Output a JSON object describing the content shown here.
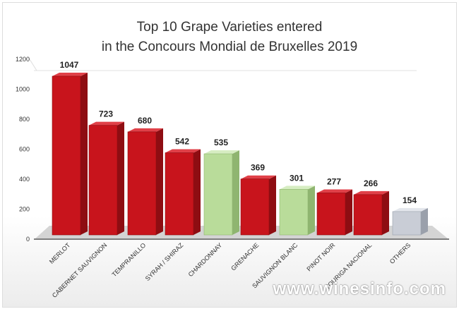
{
  "chart_data": {
    "type": "bar",
    "title_line1": "Top 10 Grape Varieties entered",
    "title_line2": "in the Concours Mondial de Bruxelles 2019",
    "categories": [
      "MERLOT",
      "CABERNET SAUVIGNON",
      "TEMPRANILLO",
      "SYRAH / SHIRAZ",
      "CHARDONNAY",
      "GRENACHE",
      "SAUVIGNON BLANC",
      "PINOT NOIR",
      "TOURIGA NACIONAL",
      "OTHERS"
    ],
    "values": [
      1047,
      723,
      680,
      542,
      535,
      369,
      301,
      277,
      266,
      154
    ],
    "bar_colors": [
      "#c8141c",
      "#c8141c",
      "#c8141c",
      "#c8141c",
      "#b9dc9a",
      "#c8141c",
      "#b9dc9a",
      "#c8141c",
      "#c8141c",
      "#c9cdd6"
    ],
    "ylim": [
      0,
      1200
    ],
    "yticks": [
      0,
      200,
      400,
      600,
      800,
      1000,
      1200
    ],
    "grid": false,
    "style": "3d-bars"
  },
  "watermark": "www.winesinfo.com"
}
